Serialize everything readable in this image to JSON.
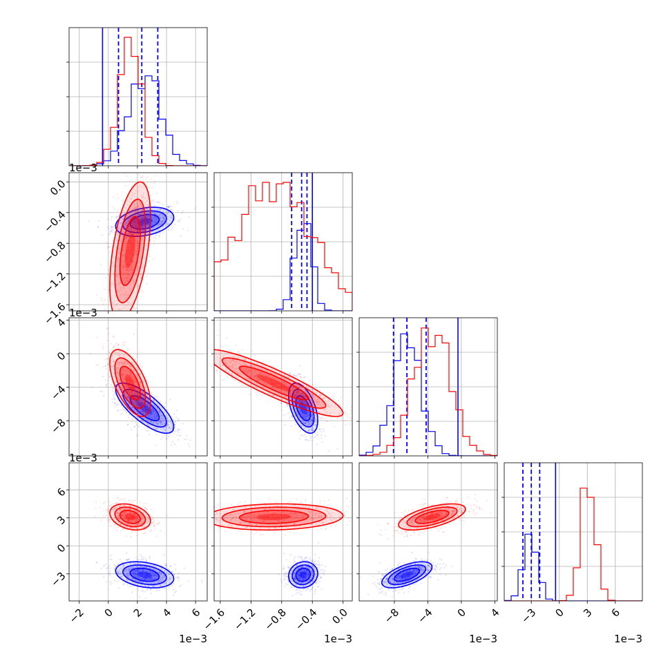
{
  "chart_data": {
    "type": "corner",
    "parameters": [
      {
        "range": [
          -0.0027,
          0.0068
        ],
        "ticks": [
          -0.002,
          0.0,
          0.002,
          0.004,
          0.006
        ],
        "tick_labels": [
          "−2",
          "0",
          "2",
          "4",
          "6"
        ],
        "offset_label": "1e−3"
      },
      {
        "range": [
          -0.00168,
          0.00012
        ],
        "ticks": [
          -0.0016,
          -0.0012,
          -0.0008,
          -0.0004,
          0.0
        ],
        "tick_labels": [
          "−1.6",
          "−1.2",
          "−0.8",
          "−0.4",
          "0.0"
        ],
        "offset_label": "1e−3"
      },
      {
        "range": [
          -0.0122,
          0.0043
        ],
        "ticks": [
          -0.008,
          -0.004,
          0.0,
          0.004
        ],
        "tick_labels": [
          "−8",
          "−4",
          "0",
          "4"
        ],
        "offset_label": "1e−3"
      },
      {
        "range": [
          -0.0059,
          0.0089
        ],
        "ticks": [
          -0.003,
          0.0,
          0.003,
          0.006
        ],
        "tick_labels": [
          "−3",
          "0",
          "3",
          "6"
        ],
        "offset_label": "1e−3"
      }
    ],
    "series": [
      {
        "color": "#0000ff",
        "quantiles": [
          [
            0.0007,
            0.0023,
            0.0034
          ],
          [
            -0.00067,
            -0.00054,
            -0.00047
          ],
          [
            -0.0081,
            -0.0065,
            -0.0042
          ],
          [
            -0.0039,
            -0.003,
            -0.0021
          ]
        ],
        "truth": [
          null,
          -0.0004,
          null,
          null
        ],
        "hist_ymax": [
          0.72,
          0.78,
          0.95,
          0.52
        ],
        "centers": [
          [
            0.0025,
            -0.00052,
            -0.0065,
            -0.0031
          ]
        ],
        "sigmas": [
          0.001,
          9.5e-05,
          0.0015,
          0.0007
        ],
        "correlations": [
          [
            0,
            1,
            0.3
          ],
          [
            0,
            2,
            -0.75
          ],
          [
            0,
            3,
            -0.3
          ],
          [
            1,
            2,
            -0.5
          ],
          [
            1,
            3,
            0.1
          ],
          [
            2,
            3,
            0.6
          ]
        ]
      },
      {
        "color": "#ff0000",
        "quantiles": [],
        "truth": [],
        "hist_ymax": [
          1.0,
          1.0,
          1.0,
          1.0
        ],
        "centers": [
          [
            0.0015,
            -0.0009,
            -0.0035,
            0.0031
          ]
        ],
        "sigmas": [
          0.0007,
          0.00045,
          0.002,
          0.0007
        ],
        "correlations": [
          [
            0,
            1,
            0.5
          ],
          [
            0,
            2,
            -0.6
          ],
          [
            0,
            3,
            -0.3
          ],
          [
            1,
            2,
            -0.9
          ],
          [
            1,
            3,
            0.1
          ],
          [
            2,
            3,
            0.6
          ]
        ]
      }
    ],
    "hist_bins": 20,
    "grid": true,
    "legend": "none"
  }
}
